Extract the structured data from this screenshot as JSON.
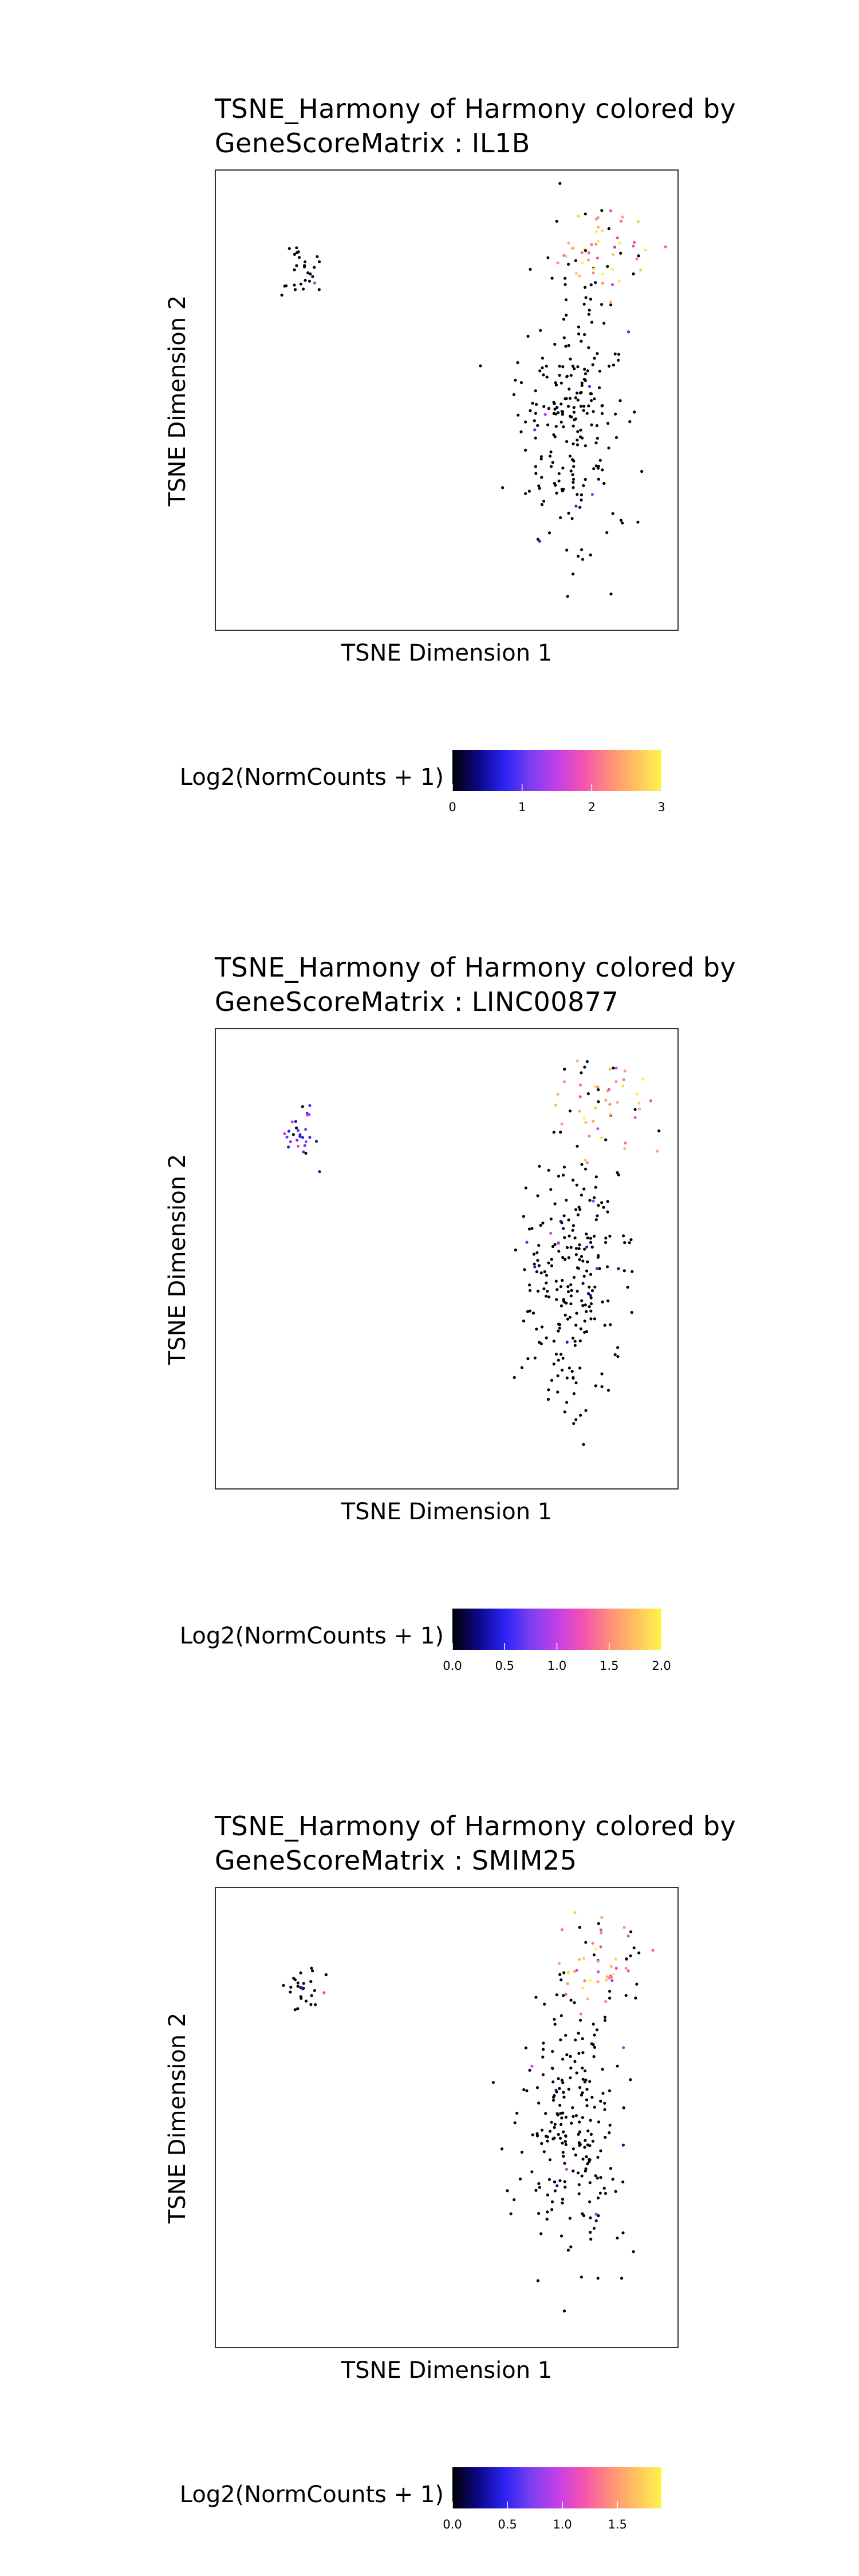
{
  "palette": [
    "#000004",
    "#0d0887",
    "#2a23f5",
    "#7b3ff0",
    "#c33fe8",
    "#f552b0",
    "#ff8c7a",
    "#ffc060",
    "#fff34a"
  ],
  "panels": [
    {
      "title": "TSNE_Harmony of Harmony colored by\nGeneScoreMatrix : IL1B",
      "xlabel": "TSNE Dimension 1",
      "ylabel": "TSNE Dimension 2",
      "legend_label": "Log2(NormCounts + 1)",
      "colorbar_ticks": [
        "0",
        "1",
        "2",
        "3"
      ],
      "chart_data": {
        "type": "scatter",
        "title": "TSNE_Harmony of Harmony colored by GeneScoreMatrix : IL1B",
        "xlabel": "TSNE Dimension 1",
        "ylabel": "TSNE Dimension 2",
        "color_scale": "Log2(NormCounts + 1)",
        "color_range": [
          0,
          3
        ],
        "grid": false,
        "clusters": [
          {
            "name": "",
            "center": [
              0.58,
              0.3
            ],
            "spread": [
              0.12,
              0.2
            ],
            "count": 230,
            "value_mean": 0.05
          },
          {
            "name": "",
            "center": [
              0.72,
              0.82
            ],
            "spread": [
              0.1,
              0.07
            ],
            "count": 55,
            "value_mean": 2.4
          },
          {
            "name": "",
            "center": [
              -0.62,
              0.73
            ],
            "spread": [
              0.045,
              0.04
            ],
            "count": 28,
            "value_mean": 0.03
          }
        ]
      }
    },
    {
      "title": "TSNE_Harmony of Harmony colored by\nGeneScoreMatrix : LINC00877",
      "xlabel": "TSNE Dimension 1",
      "ylabel": "TSNE Dimension 2",
      "legend_label": "Log2(NormCounts + 1)",
      "colorbar_ticks": [
        "0.0",
        "0.5",
        "1.0",
        "1.5",
        "2.0"
      ],
      "chart_data": {
        "type": "scatter",
        "title": "TSNE_Harmony of Harmony colored by GeneScoreMatrix : LINC00877",
        "xlabel": "TSNE Dimension 1",
        "ylabel": "TSNE Dimension 2",
        "color_scale": "Log2(NormCounts + 1)",
        "color_range": [
          0,
          2
        ],
        "grid": false,
        "clusters": [
          {
            "name": "",
            "center": [
              0.58,
              0.3
            ],
            "spread": [
              0.12,
              0.2
            ],
            "count": 230,
            "value_mean": 0.05
          },
          {
            "name": "",
            "center": [
              0.72,
              0.82
            ],
            "spread": [
              0.1,
              0.07
            ],
            "count": 55,
            "value_mean": 1.6
          },
          {
            "name": "",
            "center": [
              -0.62,
              0.73
            ],
            "spread": [
              0.045,
              0.04
            ],
            "count": 28,
            "value_mean": 0.6
          }
        ]
      }
    },
    {
      "title": "TSNE_Harmony of Harmony colored by\nGeneScoreMatrix : SMIM25",
      "xlabel": "TSNE Dimension 1",
      "ylabel": "TSNE Dimension 2",
      "legend_label": "Log2(NormCounts + 1)",
      "colorbar_ticks": [
        "0.0",
        "0.5",
        "1.0",
        "1.5"
      ],
      "chart_data": {
        "type": "scatter",
        "title": "TSNE_Harmony of Harmony colored by GeneScoreMatrix : SMIM25",
        "xlabel": "TSNE Dimension 1",
        "ylabel": "TSNE Dimension 2",
        "color_scale": "Log2(NormCounts + 1)",
        "color_range": [
          0,
          1.9
        ],
        "grid": false,
        "clusters": [
          {
            "name": "",
            "center": [
              0.58,
              0.3
            ],
            "spread": [
              0.12,
              0.2
            ],
            "count": 230,
            "value_mean": 0.05
          },
          {
            "name": "",
            "center": [
              0.72,
              0.82
            ],
            "spread": [
              0.1,
              0.07
            ],
            "count": 55,
            "value_mean": 1.5
          },
          {
            "name": "",
            "center": [
              -0.62,
              0.73
            ],
            "spread": [
              0.045,
              0.04
            ],
            "count": 28,
            "value_mean": 0.03
          }
        ]
      }
    }
  ]
}
